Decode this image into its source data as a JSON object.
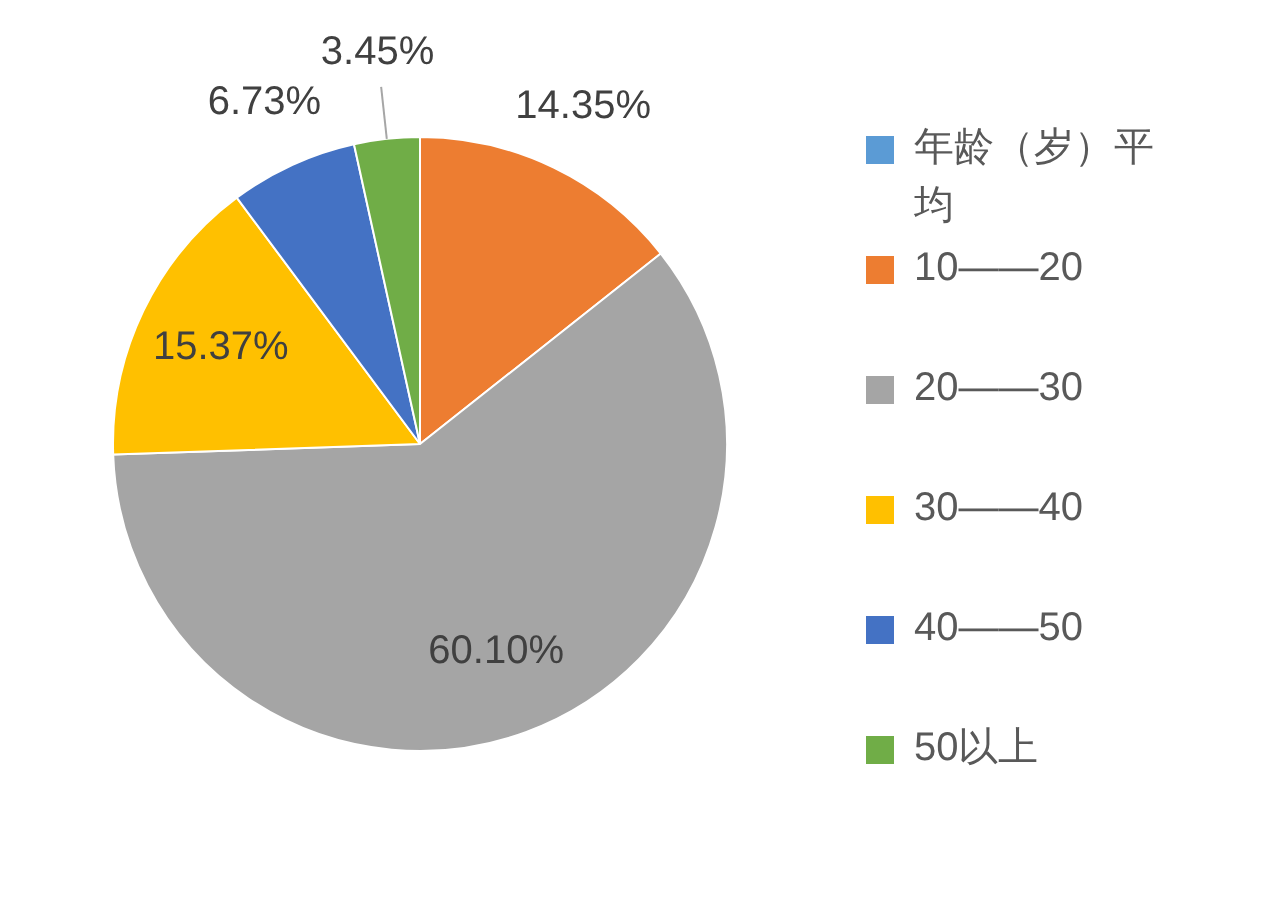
{
  "chart_data": {
    "type": "pie",
    "categories": [
      "年龄（岁）平均",
      "10——20",
      "20——30",
      "30——40",
      "40——50",
      "50以上"
    ],
    "values": [
      0,
      14.35,
      60.1,
      15.37,
      6.73,
      3.45
    ],
    "colors": [
      "#5b9bd5",
      "#ed7d31",
      "#a5a5a5",
      "#ffc000",
      "#4472c4",
      "#70ad47"
    ],
    "value_labels": [
      null,
      "14.35%",
      "60.10%",
      "15.37%",
      "6.73%",
      "3.45%"
    ],
    "legend": "right"
  }
}
